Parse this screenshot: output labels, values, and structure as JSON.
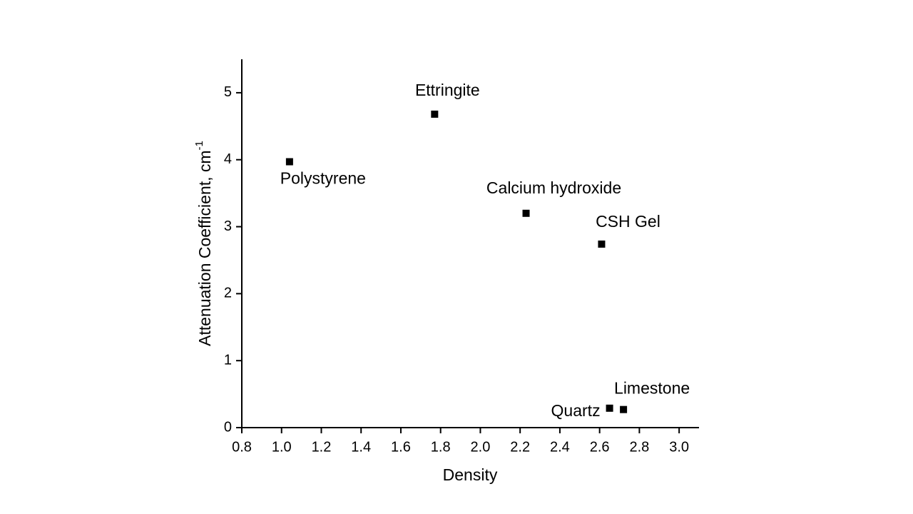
{
  "chart_data": {
    "type": "scatter",
    "x_label": "Density",
    "y_label": "Attenuation Coefficient, cm",
    "y_label_superscript": "-1",
    "labels": [
      "Polystyrene",
      "Ettringite",
      "Calcium hydroxide",
      "CSH Gel",
      "Quartz",
      "Limestone"
    ],
    "x": [
      1.04,
      1.77,
      2.23,
      2.61,
      2.65,
      2.72
    ],
    "values": [
      3.97,
      4.68,
      3.2,
      2.74,
      0.29,
      0.27
    ],
    "color": "#000000",
    "xlim": [
      0.8,
      3.1
    ],
    "xticks": [
      0.8,
      {
        "value": 1,
        "label": "1.0"
      },
      1.2,
      1.4,
      1.6,
      1.8,
      {
        "value": 2,
        "label": "2.0"
      },
      2.2,
      2.4,
      2.6,
      2.8,
      {
        "value": 3,
        "label": "3.0"
      }
    ],
    "ylim": [
      0,
      5.5
    ],
    "yticks": [
      0,
      1,
      2,
      3,
      4,
      5
    ],
    "grid": false
  }
}
